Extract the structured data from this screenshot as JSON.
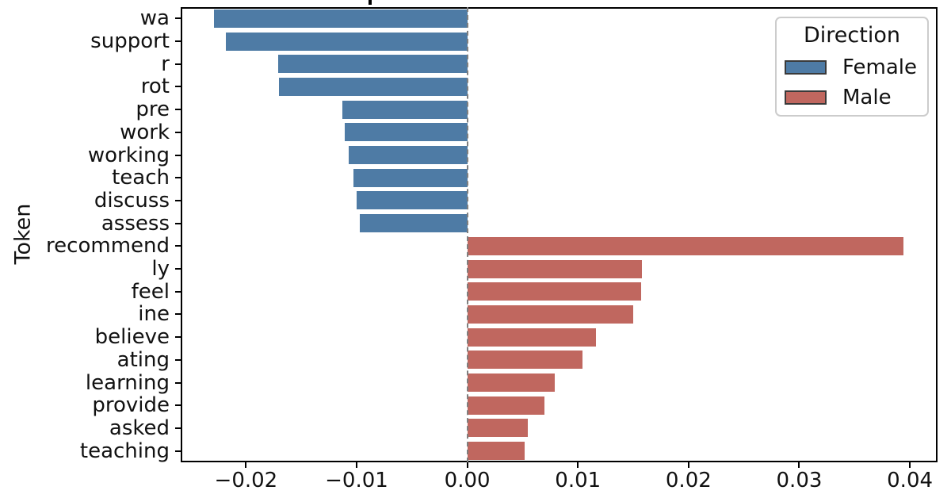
{
  "chart_data": {
    "type": "bar",
    "orientation": "horizontal",
    "title": "",
    "xlabel": "",
    "ylabel": "Token",
    "xlim": [
      -0.0259,
      0.0425
    ],
    "grid": false,
    "zero_line": {
      "x": 0.0,
      "style": "dashed",
      "color": "#7f7f7f"
    },
    "x_ticks": [
      {
        "value": -0.02,
        "label": "−0.02"
      },
      {
        "value": -0.01,
        "label": "−0.01"
      },
      {
        "value": 0.0,
        "label": "0.00"
      },
      {
        "value": 0.01,
        "label": "0.01"
      },
      {
        "value": 0.02,
        "label": "0.02"
      },
      {
        "value": 0.03,
        "label": "0.03"
      },
      {
        "value": 0.04,
        "label": "0.04"
      }
    ],
    "legend": {
      "title": "Direction",
      "position": "upper-right",
      "entries": [
        {
          "label": "Female",
          "color": "#4e7ba5"
        },
        {
          "label": "Male",
          "color": "#c0675f"
        }
      ]
    },
    "bars": [
      {
        "token": "wa",
        "direction": "Female",
        "value": -0.0229
      },
      {
        "token": "support",
        "direction": "Female",
        "value": -0.0218
      },
      {
        "token": "r",
        "direction": "Female",
        "value": -0.0171
      },
      {
        "token": "rot",
        "direction": "Female",
        "value": -0.017
      },
      {
        "token": "pre",
        "direction": "Female",
        "value": -0.0113
      },
      {
        "token": "work",
        "direction": "Female",
        "value": -0.0111
      },
      {
        "token": "working",
        "direction": "Female",
        "value": -0.0107
      },
      {
        "token": "teach",
        "direction": "Female",
        "value": -0.0103
      },
      {
        "token": "discuss",
        "direction": "Female",
        "value": -0.01
      },
      {
        "token": "assess",
        "direction": "Female",
        "value": -0.0097
      },
      {
        "token": "recommend",
        "direction": "Male",
        "value": 0.0394
      },
      {
        "token": "ly",
        "direction": "Male",
        "value": 0.0158
      },
      {
        "token": "feel",
        "direction": "Male",
        "value": 0.0157
      },
      {
        "token": "ine",
        "direction": "Male",
        "value": 0.015
      },
      {
        "token": "believe",
        "direction": "Male",
        "value": 0.0116
      },
      {
        "token": "ating",
        "direction": "Male",
        "value": 0.0104
      },
      {
        "token": "learning",
        "direction": "Male",
        "value": 0.0079
      },
      {
        "token": "provide",
        "direction": "Male",
        "value": 0.007
      },
      {
        "token": "asked",
        "direction": "Male",
        "value": 0.0055
      },
      {
        "token": "teaching",
        "direction": "Male",
        "value": 0.0052
      }
    ]
  }
}
